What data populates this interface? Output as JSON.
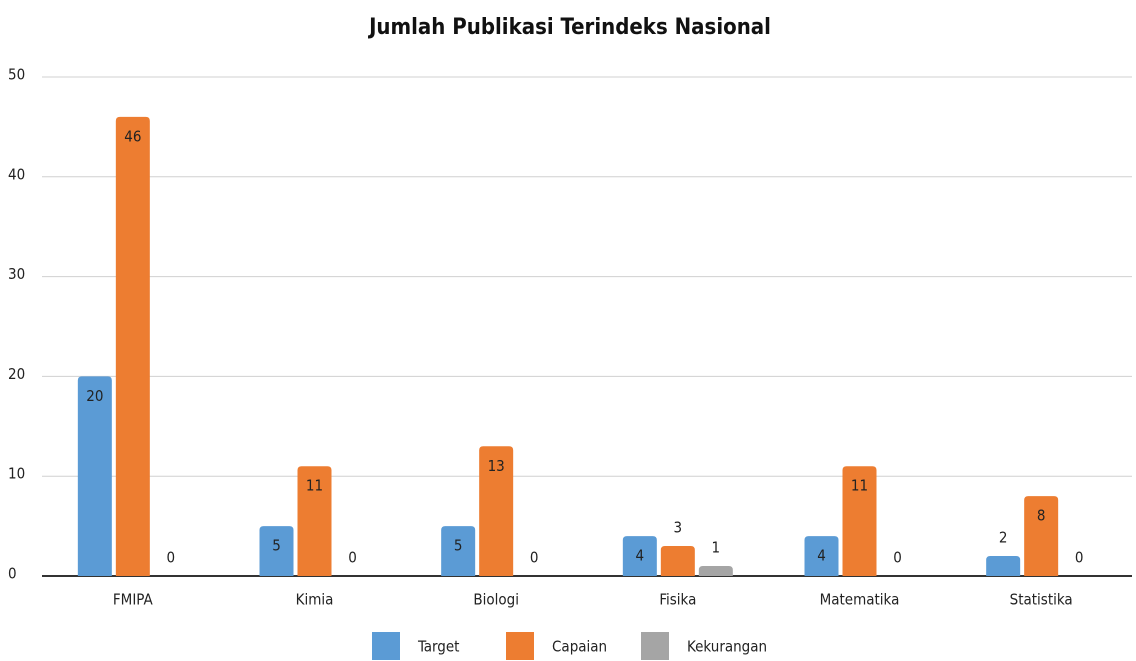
{
  "chart_data": {
    "type": "bar",
    "title": "Jumlah Publikasi Terindeks Nasional",
    "categories": [
      "FMIPA",
      "Kimia",
      "Biologi",
      "Fisika",
      "Matematika",
      "Statistika"
    ],
    "series": [
      {
        "name": "Target",
        "color": "#5b9bd5",
        "values": [
          20,
          5,
          5,
          4,
          4,
          2
        ]
      },
      {
        "name": "Capaian",
        "color": "#ed7d31",
        "values": [
          46,
          11,
          13,
          3,
          11,
          8
        ]
      },
      {
        "name": "Kekurangan",
        "color": "#a5a5a5",
        "values": [
          0,
          0,
          0,
          1,
          0,
          0
        ]
      }
    ],
    "ylim": [
      0,
      50
    ],
    "yticks": [
      0,
      10,
      20,
      30,
      40,
      50
    ],
    "grid": true
  }
}
